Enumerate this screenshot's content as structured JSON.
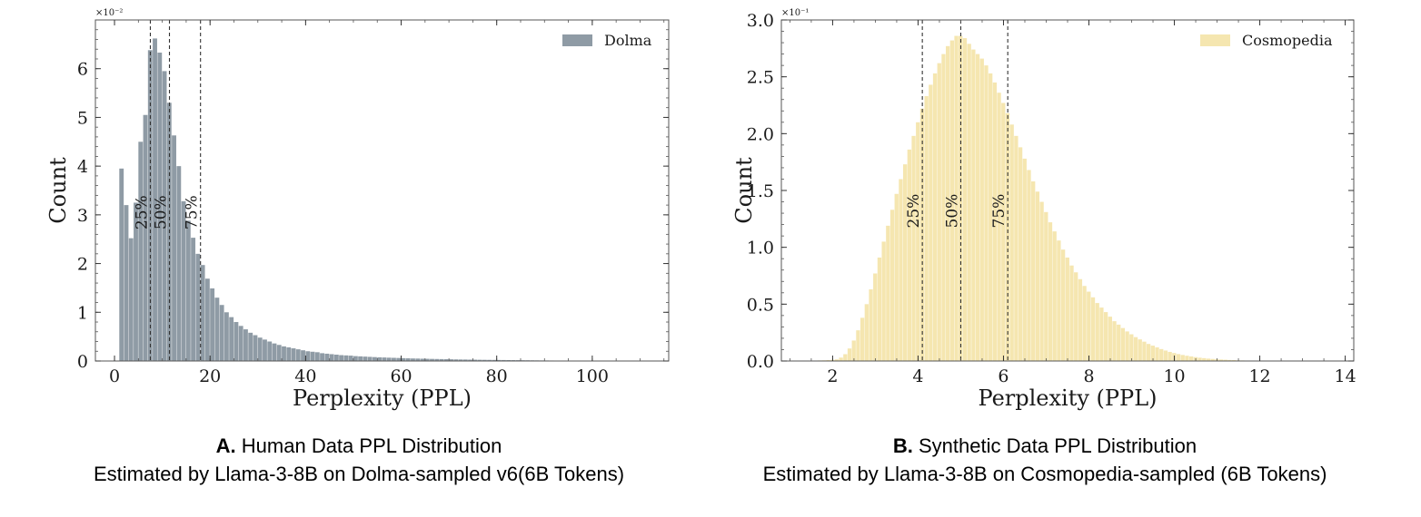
{
  "chart_data": [
    {
      "type": "histogram",
      "panel_letter": "A.",
      "caption_title": "Human Data PPL Distribution",
      "caption_sub": "Estimated by Llama-3-8B on Dolma-sampled v6(6B Tokens)",
      "ylabel": "Count",
      "xlabel": "Perplexity (PPL)",
      "y_scale_label": "×10⁻²",
      "legend": "Dolma",
      "color": "#8f9ba5",
      "xlim": [
        -4,
        116
      ],
      "ylim": [
        0,
        7.0
      ],
      "xticks": [
        0,
        20,
        40,
        60,
        80,
        100
      ],
      "xtick_labels": [
        "0",
        "20",
        "40",
        "60",
        "80",
        "100"
      ],
      "yticks": [
        0,
        1,
        2,
        3,
        4,
        5,
        6
      ],
      "ytick_labels": [
        "0",
        "1",
        "2",
        "3",
        "4",
        "5",
        "6"
      ],
      "bin_start": 1.0,
      "bin_width": 1.0,
      "values": [
        3.95,
        3.2,
        2.52,
        3.25,
        4.5,
        5.05,
        6.38,
        6.62,
        6.33,
        5.95,
        5.3,
        4.63,
        4.0,
        3.28,
        2.88,
        2.53,
        2.2,
        1.97,
        1.69,
        1.49,
        1.3,
        1.15,
        1.0,
        0.9,
        0.8,
        0.72,
        0.65,
        0.58,
        0.53,
        0.48,
        0.44,
        0.4,
        0.36,
        0.33,
        0.3,
        0.28,
        0.26,
        0.24,
        0.22,
        0.2,
        0.19,
        0.18,
        0.16,
        0.15,
        0.14,
        0.13,
        0.12,
        0.115,
        0.11,
        0.1,
        0.095,
        0.09,
        0.085,
        0.08,
        0.075,
        0.072,
        0.068,
        0.065,
        0.062,
        0.058,
        0.055,
        0.052,
        0.05,
        0.047,
        0.045,
        0.043,
        0.041,
        0.039,
        0.037,
        0.035,
        0.033,
        0.031,
        0.03,
        0.028,
        0.027,
        0.025,
        0.024,
        0.023,
        0.022,
        0.021,
        0.02,
        0.019,
        0.018,
        0.017,
        0.016,
        0.015,
        0.014,
        0.013,
        0.012,
        0.011,
        0.01,
        0.009,
        0.008,
        0.008,
        0.007,
        0.006,
        0.006,
        0.005,
        0.005,
        0.004,
        0.004,
        0.003,
        0.003,
        0.003,
        0.002,
        0.002,
        0.002,
        0.002,
        0.001,
        0.001
      ],
      "quantiles": [
        {
          "label": "25%",
          "x": 7.5
        },
        {
          "label": "50%",
          "x": 11.5
        },
        {
          "label": "75%",
          "x": 18.0
        }
      ],
      "quantile_label_y": 3.05
    },
    {
      "type": "histogram",
      "panel_letter": "B.",
      "caption_title": "Synthetic Data PPL Distribution",
      "caption_sub": "Estimated by Llama-3-8B on Cosmopedia-sampled (6B Tokens)",
      "ylabel": "Count",
      "xlabel": "Perplexity (PPL)",
      "y_scale_label": "×10⁻¹",
      "legend": "Cosmopedia",
      "color": "#f5e6b0",
      "xlim": [
        0.8,
        14.2
      ],
      "ylim": [
        0,
        3.0
      ],
      "xticks": [
        2,
        4,
        6,
        8,
        10,
        12,
        14
      ],
      "xtick_labels": [
        "2",
        "4",
        "6",
        "8",
        "10",
        "12",
        "14"
      ],
      "yticks": [
        0,
        0.5,
        1.0,
        1.5,
        2.0,
        2.5,
        3.0
      ],
      "ytick_labels": [
        "0.0",
        "0.5",
        "1.0",
        "1.5",
        "2.0",
        "2.5",
        "3.0"
      ],
      "bin_start": 1.05,
      "bin_width": 0.1,
      "values": [
        0.001,
        0.001,
        0.002,
        0.002,
        0.003,
        0.004,
        0.005,
        0.006,
        0.008,
        0.01,
        0.014,
        0.03,
        0.06,
        0.11,
        0.18,
        0.27,
        0.38,
        0.5,
        0.63,
        0.77,
        0.91,
        1.05,
        1.19,
        1.33,
        1.47,
        1.6,
        1.73,
        1.86,
        1.98,
        2.1,
        2.22,
        2.33,
        2.43,
        2.53,
        2.62,
        2.7,
        2.77,
        2.82,
        2.86,
        2.86,
        2.84,
        2.79,
        2.74,
        2.7,
        2.66,
        2.6,
        2.53,
        2.45,
        2.36,
        2.27,
        2.18,
        2.08,
        1.98,
        1.88,
        1.78,
        1.68,
        1.58,
        1.49,
        1.4,
        1.31,
        1.22,
        1.14,
        1.06,
        0.98,
        0.91,
        0.84,
        0.78,
        0.72,
        0.66,
        0.61,
        0.56,
        0.51,
        0.47,
        0.43,
        0.39,
        0.35,
        0.32,
        0.29,
        0.26,
        0.235,
        0.21,
        0.19,
        0.17,
        0.15,
        0.135,
        0.12,
        0.105,
        0.092,
        0.08,
        0.07,
        0.061,
        0.053,
        0.046,
        0.04,
        0.034,
        0.029,
        0.025,
        0.021,
        0.018,
        0.015,
        0.013,
        0.011,
        0.009,
        0.008,
        0.006,
        0.005,
        0.004,
        0.004,
        0.003,
        0.003,
        0.002,
        0.002,
        0.002,
        0.001,
        0.001,
        0.001,
        0.001,
        0.001,
        0.001,
        0.001,
        0.001,
        0.001,
        0.001,
        0.001,
        0.001,
        0.001,
        0.001,
        0.001,
        0.001,
        0.001
      ],
      "quantiles": [
        {
          "label": "25%",
          "x": 4.1
        },
        {
          "label": "50%",
          "x": 5.0
        },
        {
          "label": "75%",
          "x": 6.1
        }
      ],
      "quantile_label_y": 1.32
    }
  ]
}
